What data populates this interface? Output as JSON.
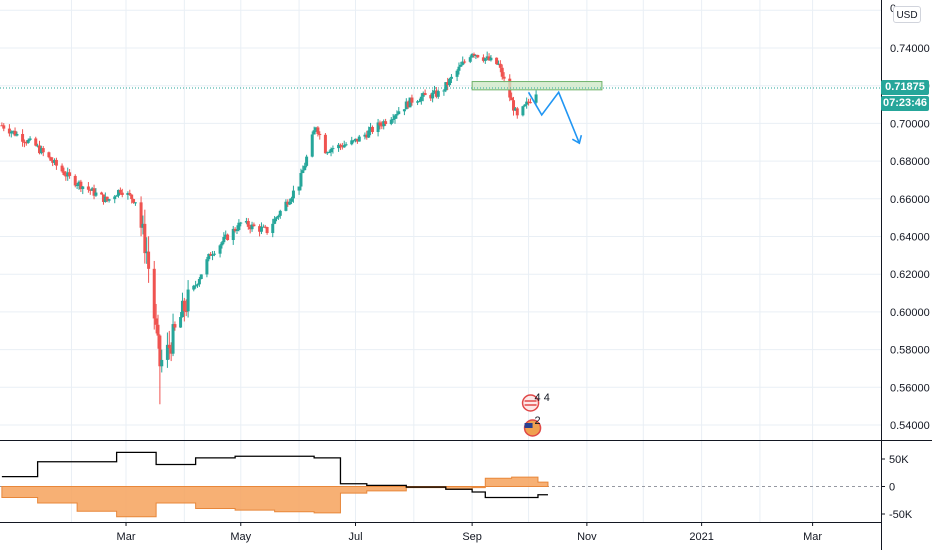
{
  "currency": "USD",
  "last_price_label": "0.71875",
  "countdown": "07:23:46",
  "colors": {
    "up": "#26a69a",
    "down": "#ef5350",
    "grid": "#e9eff5",
    "zone_fill": "#cfe8c8",
    "zone_stroke": "#6fb36a",
    "projection": "#2196f3",
    "cot_fill": "#f6a25c",
    "cot_line": "#000000"
  },
  "events": {
    "us_badge_count": "4 4",
    "au_badge_count": "2"
  },
  "chart_data": [
    {
      "type": "candlestick",
      "title": "",
      "xlabel": "",
      "ylabel": "",
      "x_ticks": [
        "Mar",
        "May",
        "Jul",
        "Sep",
        "Nov",
        "2021",
        "Mar"
      ],
      "y_ticks": [
        "0.54000",
        "0.56000",
        "0.58000",
        "0.60000",
        "0.62000",
        "0.64000",
        "0.66000",
        "0.68000",
        "0.70000",
        "0.72000",
        "0.74000"
      ],
      "ylim": [
        0.533,
        0.763
      ],
      "grid": true,
      "last_price": 0.71875,
      "x_range": [
        "2019-12-26",
        "2021-04-01"
      ],
      "series_anchor_points": [
        {
          "date": "2019-12-26",
          "price": 0.699
        },
        {
          "date": "2020-01-13",
          "price": 0.688
        },
        {
          "date": "2020-01-31",
          "price": 0.671
        },
        {
          "date": "2020-02-20",
          "price": 0.659
        },
        {
          "date": "2020-02-27",
          "price": 0.665
        },
        {
          "date": "2020-03-06",
          "price": 0.659
        },
        {
          "date": "2020-03-12",
          "price": 0.632
        },
        {
          "date": "2020-03-19",
          "price": 0.572
        },
        {
          "date": "2020-03-23",
          "price": 0.579
        },
        {
          "date": "2020-04-01",
          "price": 0.602
        },
        {
          "date": "2020-04-15",
          "price": 0.631
        },
        {
          "date": "2020-05-01",
          "price": 0.647
        },
        {
          "date": "2020-05-15",
          "price": 0.643
        },
        {
          "date": "2020-06-01",
          "price": 0.668
        },
        {
          "date": "2020-06-10",
          "price": 0.699
        },
        {
          "date": "2020-06-15",
          "price": 0.686
        },
        {
          "date": "2020-06-30",
          "price": 0.69
        },
        {
          "date": "2020-07-15",
          "price": 0.7
        },
        {
          "date": "2020-08-01",
          "price": 0.713
        },
        {
          "date": "2020-08-15",
          "price": 0.716
        },
        {
          "date": "2020-09-01",
          "price": 0.738
        },
        {
          "date": "2020-09-15",
          "price": 0.731
        },
        {
          "date": "2020-09-25",
          "price": 0.703
        },
        {
          "date": "2020-10-05",
          "price": 0.717
        }
      ],
      "resistance_zone": {
        "x_start": "2020-09-01",
        "x_end": "2020-11-09",
        "y_low": 0.7178,
        "y_high": 0.7222
      },
      "projection_path": [
        {
          "date": "2020-10-01",
          "price": 0.7165
        },
        {
          "date": "2020-10-08",
          "price": 0.7045
        },
        {
          "date": "2020-10-17",
          "price": 0.7165
        },
        {
          "date": "2020-10-28",
          "price": 0.6895
        }
      ]
    },
    {
      "type": "area",
      "title": "",
      "y_ticks": [
        "50K",
        "0",
        "-50K"
      ],
      "ylim": [
        -62000,
        62000
      ],
      "series": [
        {
          "kind": "area",
          "points": [
            {
              "date": "2019-12-26",
              "value": -20000
            },
            {
              "date": "2020-01-14",
              "value": -30000
            },
            {
              "date": "2020-02-04",
              "value": -45000
            },
            {
              "date": "2020-02-25",
              "value": -55000
            },
            {
              "date": "2020-03-17",
              "value": -30000
            },
            {
              "date": "2020-04-07",
              "value": -40000
            },
            {
              "date": "2020-04-28",
              "value": -43000
            },
            {
              "date": "2020-05-19",
              "value": -46000
            },
            {
              "date": "2020-06-09",
              "value": -48000
            },
            {
              "date": "2020-06-23",
              "value": -12000
            },
            {
              "date": "2020-07-07",
              "value": -8000
            },
            {
              "date": "2020-07-28",
              "value": -2000
            },
            {
              "date": "2020-08-18",
              "value": -5000
            },
            {
              "date": "2020-09-01",
              "value": -2000
            },
            {
              "date": "2020-09-08",
              "value": 15000
            },
            {
              "date": "2020-09-22",
              "value": 17000
            },
            {
              "date": "2020-10-06",
              "value": 8000
            }
          ]
        },
        {
          "kind": "line",
          "points": [
            {
              "date": "2019-12-26",
              "value": 18000
            },
            {
              "date": "2020-01-14",
              "value": 45000
            },
            {
              "date": "2020-02-04",
              "value": 45000
            },
            {
              "date": "2020-02-25",
              "value": 62000
            },
            {
              "date": "2020-03-17",
              "value": 40000
            },
            {
              "date": "2020-04-07",
              "value": 52000
            },
            {
              "date": "2020-04-28",
              "value": 55000
            },
            {
              "date": "2020-05-19",
              "value": 55000
            },
            {
              "date": "2020-06-09",
              "value": 52000
            },
            {
              "date": "2020-06-23",
              "value": 5000
            },
            {
              "date": "2020-07-07",
              "value": 2000
            },
            {
              "date": "2020-07-28",
              "value": -1000
            },
            {
              "date": "2020-08-18",
              "value": -5000
            },
            {
              "date": "2020-09-01",
              "value": -10000
            },
            {
              "date": "2020-09-08",
              "value": -20000
            },
            {
              "date": "2020-09-22",
              "value": -20000
            },
            {
              "date": "2020-10-06",
              "value": -15000
            }
          ]
        }
      ]
    }
  ]
}
